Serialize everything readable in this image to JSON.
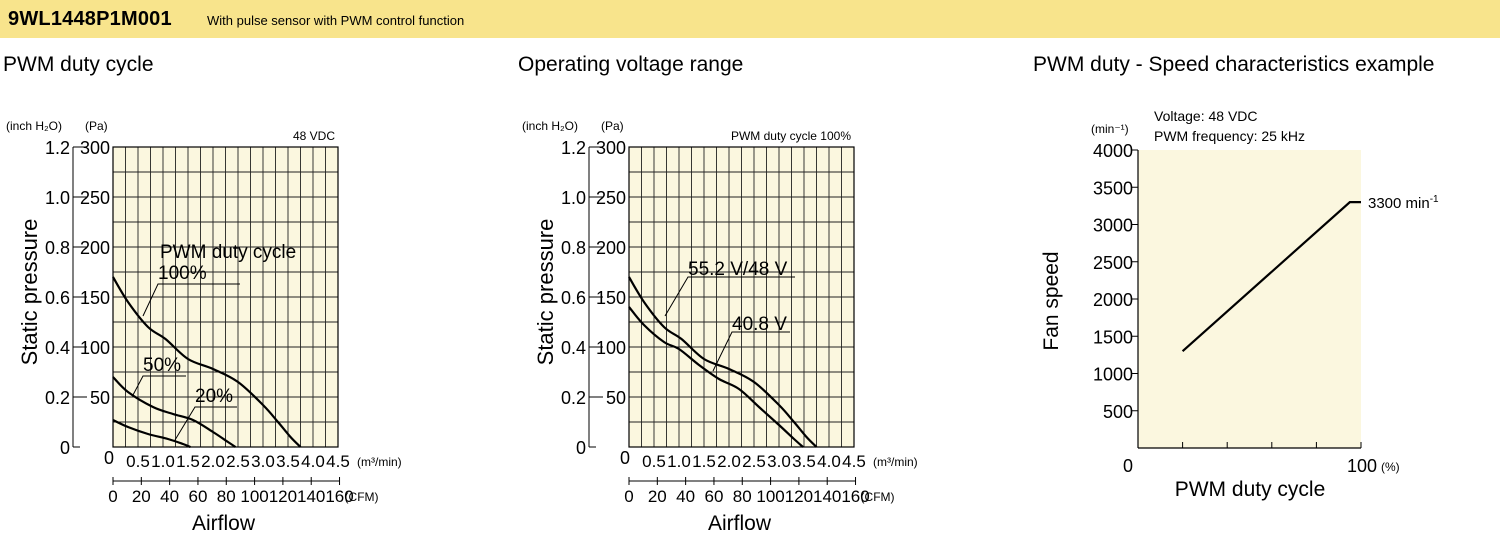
{
  "header": {
    "model": "9WL1448P1M001",
    "description": "With pulse sensor with PWM control function"
  },
  "colors": {
    "header_bg": "#f8e48c",
    "plot_bg": "#fbf7df"
  },
  "chart_data": [
    {
      "type": "line",
      "title": "PWM duty cycle",
      "note": "48 VDC",
      "xlabel": "Airflow",
      "ylabel": "Static pressure",
      "x_unit_primary": "(m³/min)",
      "x_unit_secondary": "(CFM)",
      "y_unit_left": "(inch H₂O)",
      "y_unit_right": "(Pa)",
      "xlim": [
        0,
        4.5
      ],
      "ylim": [
        0,
        300
      ],
      "x_ticks": [
        "0.5",
        "1.0",
        "1.5",
        "2.0",
        "2.5",
        "3.0",
        "3.5",
        "4.0",
        "4.5"
      ],
      "x_ticks_cfm": [
        "0",
        "20",
        "40",
        "60",
        "80",
        "100",
        "120",
        "140",
        "160"
      ],
      "y_ticks_pa": [
        "50",
        "100",
        "150",
        "200",
        "250",
        "300"
      ],
      "y_ticks_inch": [
        "0",
        "0.2",
        "0.4",
        "0.6",
        "0.8",
        "1.0",
        "1.2"
      ],
      "x_zero_label": "0",
      "grid": true,
      "legend_title": "PWM duty cycle",
      "series": [
        {
          "name": "100%",
          "x": [
            0,
            0.3,
            0.7,
            1.05,
            1.5,
            2.0,
            2.5,
            3.0,
            3.3,
            3.55,
            3.75
          ],
          "y": [
            170,
            145,
            120,
            108,
            88,
            78,
            65,
            42,
            25,
            10,
            0
          ]
        },
        {
          "name": "50%",
          "x": [
            0,
            0.3,
            0.8,
            1.2,
            1.6,
            2.0,
            2.3,
            2.45
          ],
          "y": [
            70,
            55,
            40,
            33,
            27,
            15,
            5,
            0
          ]
        },
        {
          "name": "20%",
          "x": [
            0,
            0.3,
            0.7,
            1.1,
            1.4,
            1.55
          ],
          "y": [
            27,
            20,
            13,
            8,
            3,
            0
          ]
        }
      ]
    },
    {
      "type": "line",
      "title": "Operating voltage range",
      "note": "PWM duty cycle 100%",
      "xlabel": "Airflow",
      "ylabel": "Static pressure",
      "x_unit_primary": "(m³/min)",
      "x_unit_secondary": "(CFM)",
      "y_unit_left": "(inch H₂O)",
      "y_unit_right": "(Pa)",
      "xlim": [
        0,
        4.5
      ],
      "ylim": [
        0,
        300
      ],
      "x_ticks": [
        "0.5",
        "1.0",
        "1.5",
        "2.0",
        "2.5",
        "3.0",
        "3.5",
        "4.0",
        "4.5"
      ],
      "x_ticks_cfm": [
        "0",
        "20",
        "40",
        "60",
        "80",
        "100",
        "120",
        "140",
        "160"
      ],
      "y_ticks_pa": [
        "50",
        "100",
        "150",
        "200",
        "250",
        "300"
      ],
      "y_ticks_inch": [
        "0",
        "0.2",
        "0.4",
        "0.6",
        "0.8",
        "1.0",
        "1.2"
      ],
      "x_zero_label": "0",
      "grid": true,
      "series": [
        {
          "name": "55.2 V/48 V",
          "x": [
            0,
            0.3,
            0.7,
            1.05,
            1.5,
            2.0,
            2.5,
            3.0,
            3.3,
            3.55,
            3.75
          ],
          "y": [
            170,
            145,
            120,
            108,
            88,
            78,
            65,
            42,
            25,
            10,
            0
          ]
        },
        {
          "name": "40.8 V",
          "x": [
            0,
            0.3,
            0.7,
            1.0,
            1.4,
            1.8,
            2.2,
            2.6,
            3.0,
            3.3,
            3.48
          ],
          "y": [
            140,
            122,
            105,
            98,
            82,
            68,
            58,
            40,
            22,
            8,
            0
          ]
        }
      ]
    },
    {
      "type": "line",
      "title": "PWM duty - Speed characteristics example",
      "note_lines": [
        "Voltage: 48 VDC",
        "PWM frequency: 25 kHz"
      ],
      "xlabel": "PWM duty cycle",
      "ylabel": "Fan speed",
      "y_unit": "(min⁻¹)",
      "x_end_label": "100",
      "x_unit": "(%)",
      "x_zero_label": "0",
      "xlim": [
        0,
        100
      ],
      "ylim": [
        0,
        4000
      ],
      "y_ticks": [
        "500",
        "1000",
        "1500",
        "2000",
        "2500",
        "3000",
        "3500",
        "4000"
      ],
      "grid": false,
      "series": [
        {
          "x": [
            20,
            95,
            100
          ],
          "y": [
            1300,
            3300,
            3300
          ]
        }
      ],
      "annotation": {
        "text": "3300 min",
        "superscript": "-1"
      }
    }
  ]
}
